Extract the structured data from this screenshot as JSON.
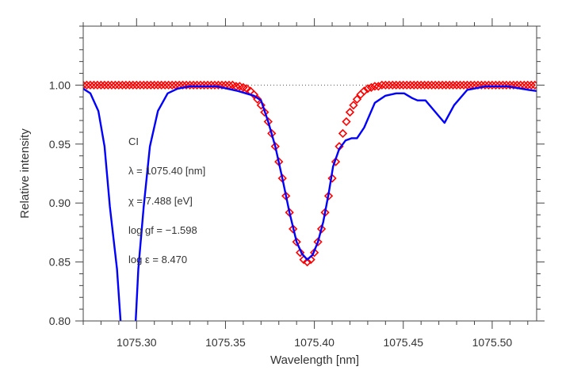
{
  "chart_data": {
    "type": "line",
    "title": "",
    "xlabel": "Wavelength [nm]",
    "ylabel": "Relative intensity",
    "xlim": [
      1075.27,
      1075.525
    ],
    "ylim": [
      0.8,
      1.05
    ],
    "grid": false,
    "x_ticks": [
      1075.3,
      1075.35,
      1075.4,
      1075.45,
      1075.5
    ],
    "x_tick_labels": [
      "1075.30",
      "1075.35",
      "1075.40",
      "1075.45",
      "1075.50"
    ],
    "y_ticks": [
      0.8,
      0.85,
      0.9,
      0.95,
      1.0
    ],
    "y_tick_labels": [
      "0.80",
      "0.85",
      "0.90",
      "0.95",
      "1.00"
    ],
    "x_minor_step": 0.01,
    "y_minor_step": 0.01,
    "reference_line": {
      "y": 1.0,
      "style": "dotted"
    },
    "annotations": [
      "CI",
      "λ = 1075.40 [nm]",
      "χ =  7.488 [eV]",
      "log gf = −1.598",
      "log ε =  8.470"
    ],
    "series": [
      {
        "style": "line",
        "color": "#0000ff",
        "points": [
          [
            1075.27,
            0.997
          ],
          [
            1075.274,
            0.993
          ],
          [
            1075.2785,
            0.978
          ],
          [
            1075.282,
            0.948
          ],
          [
            1075.285,
            0.897
          ],
          [
            1075.289,
            0.844
          ],
          [
            1075.291,
            0.8
          ],
          [
            1075.295,
            null
          ],
          [
            1075.2995,
            0.8
          ],
          [
            1075.301,
            0.844
          ],
          [
            1075.304,
            0.897
          ],
          [
            1075.3075,
            0.948
          ],
          [
            1075.312,
            0.978
          ],
          [
            1075.3175,
            0.993
          ],
          [
            1075.323,
            0.997
          ],
          [
            1075.33,
            0.999
          ],
          [
            1075.345,
            0.999
          ],
          [
            1075.357,
            0.995
          ],
          [
            1075.366,
            0.991
          ],
          [
            1075.37,
            0.987
          ],
          [
            1075.374,
            0.969
          ],
          [
            1075.378,
            0.948
          ],
          [
            1075.382,
            0.921
          ],
          [
            1075.386,
            0.892
          ],
          [
            1075.39,
            0.867
          ],
          [
            1075.393,
            0.857
          ],
          [
            1075.396,
            0.852
          ],
          [
            1075.399,
            0.856
          ],
          [
            1075.402,
            0.867
          ],
          [
            1075.405,
            0.884
          ],
          [
            1075.408,
            0.908
          ],
          [
            1075.4105,
            0.931
          ],
          [
            1075.414,
            0.946
          ],
          [
            1075.4175,
            0.953
          ],
          [
            1075.421,
            0.955
          ],
          [
            1075.424,
            0.955
          ],
          [
            1075.428,
            0.964
          ],
          [
            1075.434,
            0.985
          ],
          [
            1075.44,
            0.991
          ],
          [
            1075.446,
            0.993
          ],
          [
            1075.4505,
            0.993
          ],
          [
            1075.455,
            0.989
          ],
          [
            1075.458,
            0.987
          ],
          [
            1075.4625,
            0.987
          ],
          [
            1075.467,
            0.979
          ],
          [
            1075.4732,
            0.968
          ],
          [
            1075.4786,
            0.983
          ],
          [
            1075.486,
            0.996
          ],
          [
            1075.4964,
            0.999
          ],
          [
            1075.5085,
            0.999
          ],
          [
            1075.5205,
            0.996
          ],
          [
            1075.525,
            0.995
          ]
        ]
      },
      {
        "style": "diamond-markers",
        "color": "#ff0000",
        "x": [
          1075.27,
          1075.272,
          1075.274,
          1075.276,
          1075.278,
          1075.28,
          1075.282,
          1075.284,
          1075.286,
          1075.288,
          1075.29,
          1075.292,
          1075.294,
          1075.296,
          1075.298,
          1075.3,
          1075.302,
          1075.304,
          1075.306,
          1075.308,
          1075.31,
          1075.312,
          1075.314,
          1075.316,
          1075.318,
          1075.32,
          1075.322,
          1075.324,
          1075.326,
          1075.328,
          1075.33,
          1075.332,
          1075.334,
          1075.336,
          1075.338,
          1075.34,
          1075.342,
          1075.344,
          1075.346,
          1075.348,
          1075.35,
          1075.352,
          1075.354,
          1075.356,
          1075.358,
          1075.36,
          1075.362,
          1075.364,
          1075.366,
          1075.368,
          1075.37,
          1075.372,
          1075.374,
          1075.376,
          1075.378,
          1075.38,
          1075.382,
          1075.384,
          1075.386,
          1075.388,
          1075.39,
          1075.392,
          1075.394,
          1075.396,
          1075.398,
          1075.4,
          1075.402,
          1075.404,
          1075.406,
          1075.408,
          1075.41,
          1075.412,
          1075.414,
          1075.416,
          1075.418,
          1075.42,
          1075.422,
          1075.424,
          1075.426,
          1075.428,
          1075.43,
          1075.432,
          1075.434,
          1075.436,
          1075.438,
          1075.44,
          1075.442,
          1075.444,
          1075.446,
          1075.448,
          1075.45,
          1075.452,
          1075.454,
          1075.456,
          1075.458,
          1075.46,
          1075.462,
          1075.464,
          1075.466,
          1075.468,
          1075.47,
          1075.472,
          1075.474,
          1075.476,
          1075.478,
          1075.48,
          1075.482,
          1075.484,
          1075.486,
          1075.488,
          1075.49,
          1075.492,
          1075.494,
          1075.496,
          1075.498,
          1075.5,
          1075.502,
          1075.504,
          1075.506,
          1075.508,
          1075.51,
          1075.512,
          1075.514,
          1075.516,
          1075.518,
          1075.52,
          1075.522,
          1075.524
        ],
        "y": [
          1.0,
          1.0,
          1.0,
          1.0,
          1.0,
          1.0,
          1.0,
          1.0,
          1.0,
          1.0,
          1.0,
          1.0,
          1.0,
          1.0,
          1.0,
          1.0,
          1.0,
          1.0,
          1.0,
          1.0,
          1.0,
          1.0,
          1.0,
          1.0,
          1.0,
          1.0,
          1.0,
          1.0,
          1.0,
          1.0,
          1.0,
          1.0,
          1.0,
          1.0,
          1.0,
          1.0,
          1.0,
          1.0,
          1.0,
          1.0,
          1.0,
          1.0,
          1.0,
          0.999,
          0.999,
          0.998,
          0.997,
          0.995,
          0.992,
          0.988,
          0.983,
          0.977,
          0.969,
          0.959,
          0.948,
          0.935,
          0.921,
          0.906,
          0.892,
          0.878,
          0.867,
          0.858,
          0.852,
          0.85,
          0.852,
          0.858,
          0.867,
          0.878,
          0.892,
          0.906,
          0.921,
          0.935,
          0.948,
          0.959,
          0.969,
          0.977,
          0.983,
          0.988,
          0.992,
          0.995,
          0.997,
          0.998,
          0.999,
          0.999,
          1.0,
          1.0,
          1.0,
          1.0,
          1.0,
          1.0,
          1.0,
          1.0,
          1.0,
          1.0,
          1.0,
          1.0,
          1.0,
          1.0,
          1.0,
          1.0,
          1.0,
          1.0,
          1.0,
          1.0,
          1.0,
          1.0,
          1.0,
          1.0,
          1.0,
          1.0,
          1.0,
          1.0,
          1.0,
          1.0,
          1.0,
          1.0,
          1.0,
          1.0,
          1.0,
          1.0,
          1.0,
          1.0,
          1.0,
          1.0,
          1.0,
          1.0,
          1.0,
          1.0
        ]
      }
    ]
  }
}
